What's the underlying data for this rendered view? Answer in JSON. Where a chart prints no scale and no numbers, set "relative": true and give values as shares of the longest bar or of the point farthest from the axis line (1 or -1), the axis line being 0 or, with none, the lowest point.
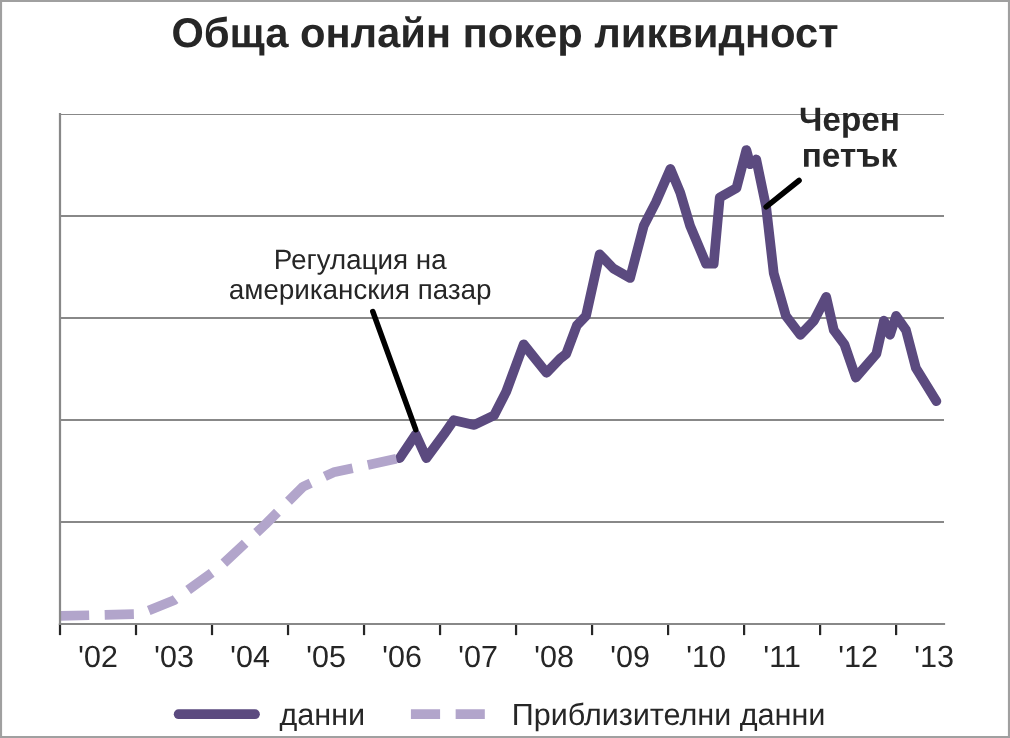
{
  "chart_data": {
    "type": "line",
    "title": "Обща онлайн покер ликвидност",
    "relative": true,
    "xlim": [
      2001.5,
      2013.13
    ],
    "xticks": [
      {
        "value": 2001.5,
        "label": null
      },
      {
        "value": 2002.5,
        "label": null
      },
      {
        "value": 2003.5,
        "label": null
      },
      {
        "value": 2004.5,
        "label": null
      },
      {
        "value": 2005.5,
        "label": null
      },
      {
        "value": 2006.5,
        "label": null
      },
      {
        "value": 2007.5,
        "label": null
      },
      {
        "value": 2008.5,
        "label": null
      },
      {
        "value": 2009.5,
        "label": null
      },
      {
        "value": 2010.5,
        "label": null
      },
      {
        "value": 2011.5,
        "label": null
      },
      {
        "value": 2012.5,
        "label": null
      },
      {
        "value": 2002,
        "label": "'02"
      },
      {
        "value": 2003,
        "label": "'03"
      },
      {
        "value": 2004,
        "label": "'04"
      },
      {
        "value": 2005,
        "label": "'05"
      },
      {
        "value": 2006,
        "label": "'06"
      },
      {
        "value": 2007,
        "label": "'07"
      },
      {
        "value": 2008,
        "label": "'08"
      },
      {
        "value": 2009,
        "label": "'09"
      },
      {
        "value": 2010,
        "label": "'10"
      },
      {
        "value": 2011,
        "label": "'11"
      },
      {
        "value": 2012,
        "label": "'12"
      },
      {
        "value": 2013,
        "label": "'13"
      }
    ],
    "grid": "y",
    "legend": "bottom",
    "marker": "none",
    "series": [
      {
        "name": "данни",
        "color": "#5b4a7f",
        "line_style": "solid",
        "x": [
          2005.97,
          2006.18,
          2006.32,
          2006.55,
          2006.68,
          2006.95,
          2007.21,
          2007.37,
          2007.6,
          2007.9,
          2008.08,
          2008.16,
          2008.3,
          2008.42,
          2008.6,
          2008.78,
          2009.0,
          2009.18,
          2009.34,
          2009.53,
          2009.66,
          2009.79,
          2010.0,
          2010.1,
          2010.18,
          2010.4,
          2010.53,
          2010.58,
          2010.66,
          2010.79,
          2010.89,
          2011.05,
          2011.24,
          2011.42,
          2011.58,
          2011.68,
          2011.82,
          2011.97,
          2012.24,
          2012.34,
          2012.42,
          2012.5,
          2012.63,
          2012.76,
          2013.03
        ],
        "values": [
          0.35,
          0.4,
          0.35,
          0.4,
          0.43,
          0.42,
          0.44,
          0.49,
          0.59,
          0.53,
          0.56,
          0.57,
          0.63,
          0.65,
          0.78,
          0.75,
          0.73,
          0.84,
          0.89,
          0.96,
          0.91,
          0.84,
          0.76,
          0.76,
          0.9,
          0.92,
          1.0,
          0.97,
          0.98,
          0.88,
          0.74,
          0.65,
          0.61,
          0.64,
          0.69,
          0.62,
          0.59,
          0.52,
          0.57,
          0.64,
          0.61,
          0.65,
          0.62,
          0.54,
          0.47
        ]
      },
      {
        "name": "Приблизителни данни",
        "color": "#b2a5cb",
        "line_style": "dashed",
        "x": [
          2001.5,
          2002.55,
          2003.0,
          2003.6,
          2004.2,
          2004.7,
          2005.1,
          2005.97
        ],
        "values": [
          0.017,
          0.021,
          0.05,
          0.12,
          0.21,
          0.29,
          0.32,
          0.35
        ]
      }
    ],
    "annotations": [
      {
        "text": "Регулация на\nамериканския пазар",
        "x": 2006.18,
        "y": 0.41
      },
      {
        "text": "Черен\nпетък",
        "x": 2010.79,
        "y": 0.88
      }
    ]
  }
}
